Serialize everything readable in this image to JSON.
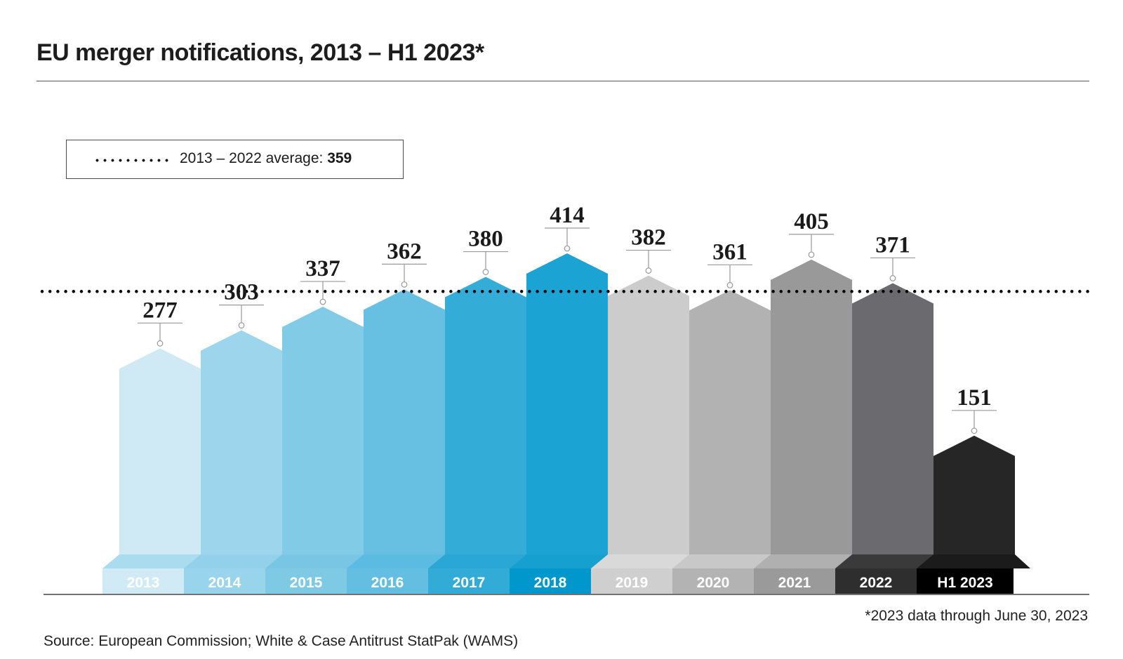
{
  "title": "EU merger notifications, 2013 – H1 2023*",
  "legend": {
    "label": "2013 – 2022 average: ",
    "value": "359",
    "line_style": "dotted"
  },
  "footnote": "*2023 data through June 30, 2023",
  "source": "Source: European Commission; White & Case Antitrust StatPak (WAMS)",
  "chart_data": {
    "type": "bar",
    "title": "EU merger notifications, 2013 – H1 2023*",
    "xlabel": "",
    "ylabel": "",
    "ylim": [
      0,
      420
    ],
    "grid": false,
    "categories": [
      "2013",
      "2014",
      "2015",
      "2016",
      "2017",
      "2018",
      "2019",
      "2020",
      "2021",
      "2022",
      "H1 2023"
    ],
    "values": [
      277,
      303,
      337,
      362,
      380,
      414,
      382,
      361,
      405,
      371,
      151
    ],
    "data_labels": [
      "277",
      "303",
      "337",
      "362",
      "380",
      "414",
      "382",
      "361",
      "405",
      "371",
      "151"
    ],
    "reference_line": {
      "label": "2013 – 2022 average",
      "value": 359,
      "style": "dotted",
      "color": "#000000"
    },
    "colors": {
      "bars": [
        "#cfeaf4",
        "#9dd6ec",
        "#82cbe6",
        "#67c0e2",
        "#34acd8",
        "#1ba3d3",
        "#cccccc",
        "#b2b2b2",
        "#999999",
        "#6b6a6f",
        "#262626"
      ],
      "shelf": [
        "#a8dcee",
        "#93d1ea",
        "#78c6e4",
        "#5cbbe0",
        "#2aa7d5",
        "#15a0d0",
        "#d9d9d9",
        "#c8c8c8",
        "#b0b0b0",
        "#3a3a3a",
        "#1b1b1b"
      ],
      "label_bg": [
        "#d0ebf5",
        "#98d4eb",
        "#7ecae5",
        "#63bee1",
        "#32abd7",
        "#0098cc",
        "#cfcfcf",
        "#b3b3b3",
        "#9a9a9a",
        "#2e2e2e",
        "#000000"
      ],
      "label_text": "#ffffff",
      "value_text": "#1a1a1a",
      "leader_line": "#9a9a9a"
    },
    "legend_position": "top-left"
  }
}
